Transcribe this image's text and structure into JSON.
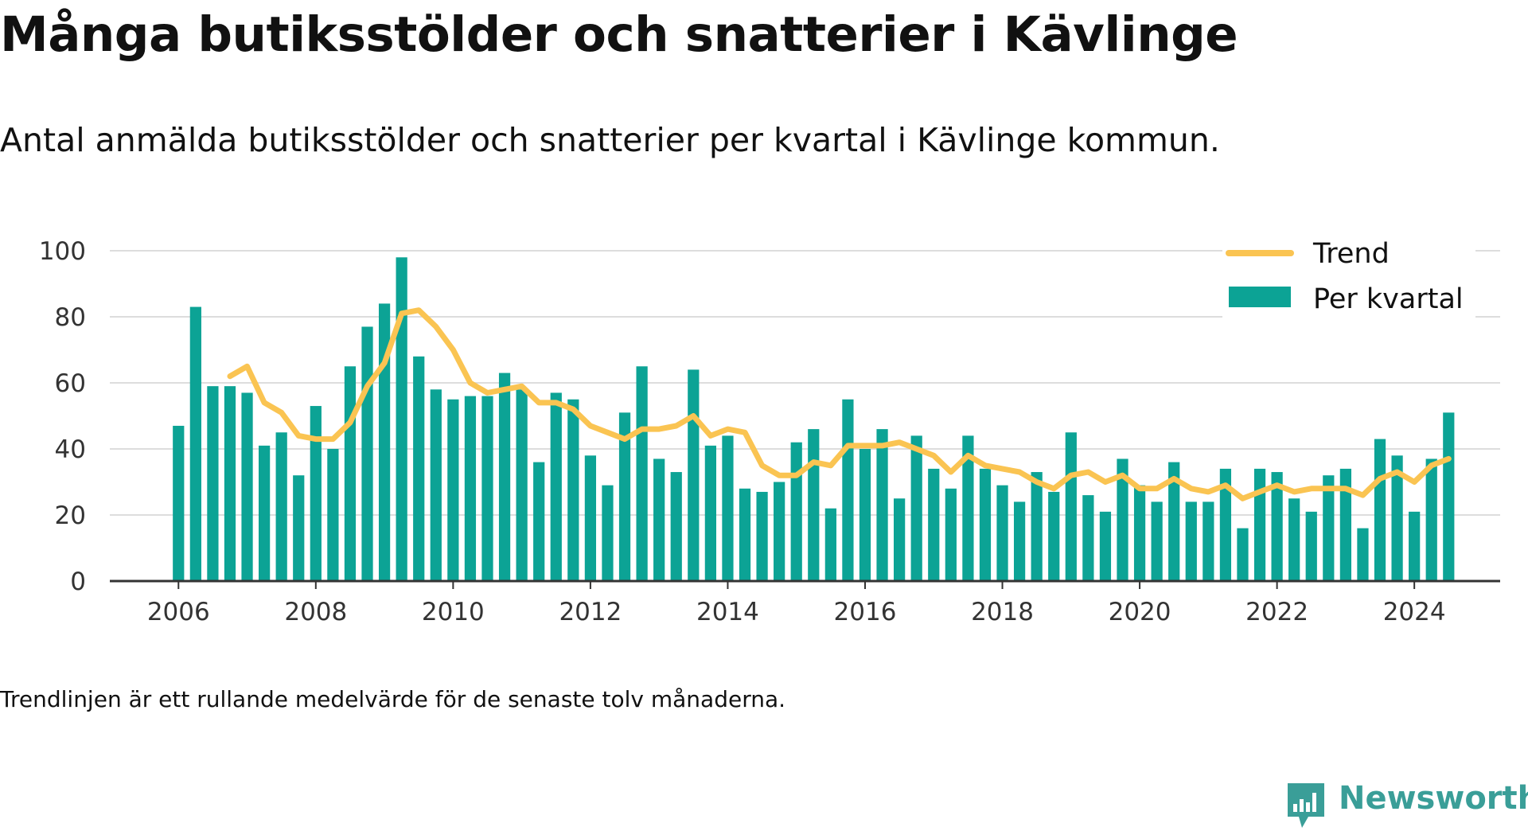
{
  "header": {
    "title": "Många butiksstölder och snatterier i Kävlinge",
    "subtitle": "Antal anmälda butiksstölder och snatterier per kvartal i Kävlinge kommun."
  },
  "footnote": "Trendlinjen är ett rullande medelvärde för de senaste tolv månaderna.",
  "brand": {
    "name": "Newsworthy",
    "icon": "newsworthy-logo-icon"
  },
  "colors": {
    "bars": "#0ca395",
    "trend": "#fac452",
    "grid": "#dddddd",
    "axis": "#333333",
    "brand": "#3a9e98"
  },
  "chart_data": {
    "type": "bar",
    "x_start": 2006,
    "x_step": 0.25,
    "xlim": [
      2005.0,
      2025.25
    ],
    "ylim": [
      0,
      100
    ],
    "yticks": [
      0,
      20,
      40,
      60,
      80,
      100
    ],
    "xticks": [
      2006,
      2008,
      2010,
      2012,
      2014,
      2016,
      2018,
      2020,
      2022,
      2024
    ],
    "grid": true,
    "legend_position": "top-right",
    "series": [
      {
        "name": "Per kvartal",
        "type": "bar",
        "values": [
          47,
          83,
          59,
          59,
          57,
          41,
          45,
          32,
          53,
          40,
          65,
          77,
          84,
          98,
          68,
          58,
          55,
          56,
          56,
          63,
          58,
          36,
          57,
          55,
          38,
          29,
          51,
          65,
          37,
          33,
          64,
          41,
          44,
          28,
          27,
          30,
          42,
          46,
          22,
          55,
          40,
          46,
          25,
          44,
          34,
          28,
          44,
          34,
          29,
          24,
          33,
          27,
          45,
          26,
          21,
          37,
          29,
          24,
          36,
          24,
          24,
          34,
          16,
          34,
          33,
          25,
          21,
          32,
          34,
          16,
          43,
          38,
          21,
          37,
          51
        ]
      },
      {
        "name": "Trend",
        "type": "line",
        "start_index": 3,
        "values": [
          62,
          65,
          54,
          51,
          44,
          43,
          43,
          48,
          59,
          66,
          81,
          82,
          77,
          70,
          60,
          57,
          58,
          59,
          54,
          54,
          52,
          47,
          45,
          43,
          46,
          46,
          47,
          50,
          44,
          46,
          45,
          35,
          32,
          32,
          36,
          35,
          41,
          41,
          41,
          42,
          40,
          38,
          33,
          38,
          35,
          34,
          33,
          30,
          28,
          32,
          33,
          30,
          32,
          28,
          28,
          31,
          28,
          27,
          29,
          25,
          27,
          29,
          27,
          28,
          28,
          28,
          26,
          31,
          33,
          30,
          35,
          37
        ]
      }
    ]
  }
}
